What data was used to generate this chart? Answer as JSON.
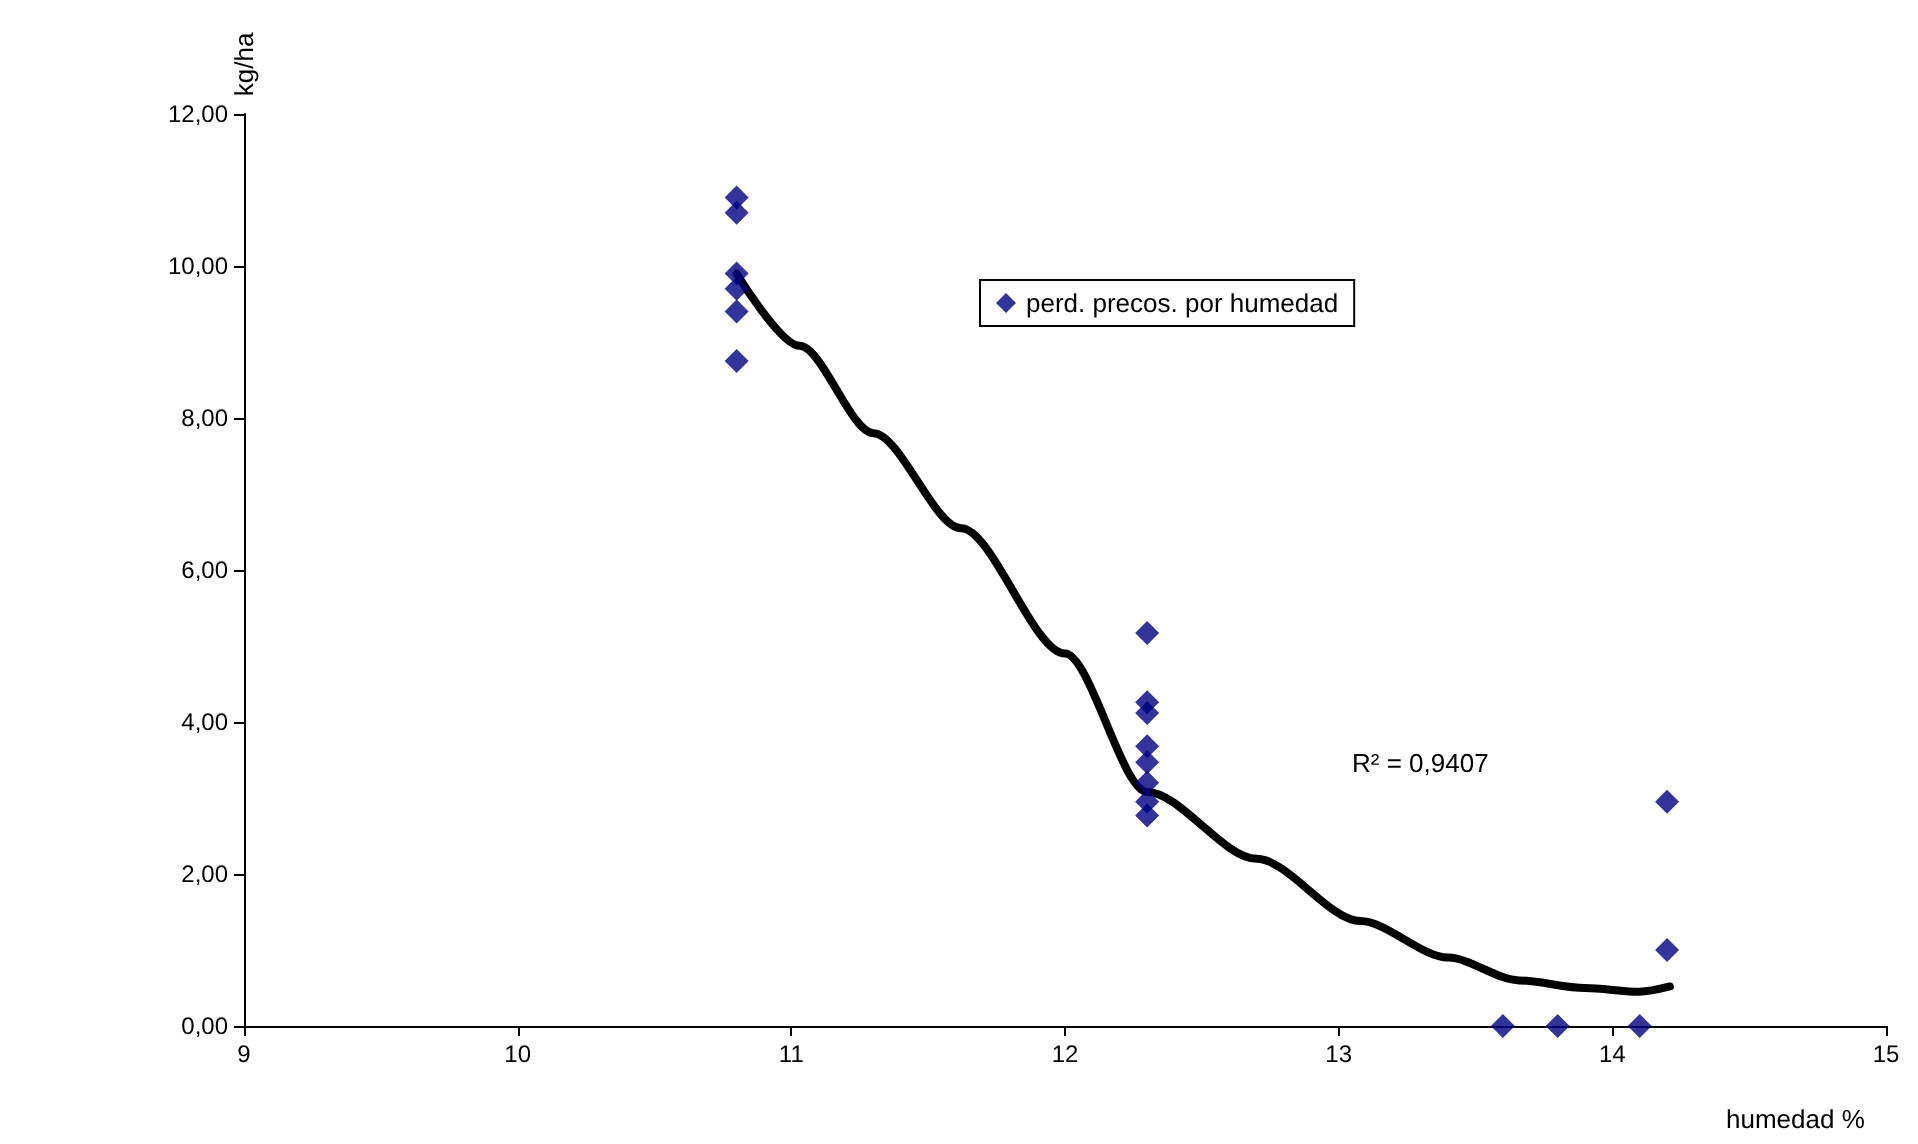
{
  "chart_data": {
    "type": "scatter",
    "xlabel": "humedad %",
    "ylabel": "kg/ha",
    "xlim": [
      9,
      15
    ],
    "xticks": [
      9,
      10,
      11,
      12,
      13,
      14,
      15
    ],
    "ylim": [
      0,
      12
    ],
    "yticks": [
      {
        "value": 0,
        "label": "0,00"
      },
      {
        "value": 2,
        "label": "2,00"
      },
      {
        "value": 4,
        "label": "4,00"
      },
      {
        "value": 6,
        "label": "6,00"
      },
      {
        "value": 8,
        "label": "8,00"
      },
      {
        "value": 10,
        "label": "10,00"
      },
      {
        "value": 12,
        "label": "12,00"
      }
    ],
    "grid": false,
    "legend": "top",
    "marker": "diamond",
    "annotations": [
      "R² = 0,9407"
    ],
    "series": [
      {
        "name": "perd. precos. por humedad",
        "color": "#000080",
        "x": [
          10.8,
          10.8,
          10.8,
          10.8,
          10.8,
          10.8,
          12.3,
          12.3,
          12.3,
          12.3,
          12.3,
          12.3,
          12.3,
          12.3,
          13.6,
          13.8,
          14.1,
          14.2,
          14.2
        ],
        "values": [
          10.9,
          10.7,
          9.9,
          9.7,
          9.4,
          8.75,
          5.17,
          4.26,
          4.12,
          3.68,
          3.47,
          3.2,
          2.95,
          2.77,
          0,
          0,
          0,
          2.95,
          1.0
        ]
      },
      {
        "type": "line",
        "color": "#000000",
        "marker": "none",
        "x": [
          10.8,
          11.03,
          11.3,
          11.62,
          12.0,
          12.3,
          12.7,
          13.08,
          13.4,
          13.66,
          13.9,
          14.1,
          14.21
        ],
        "values": [
          9.9,
          8.95,
          7.8,
          6.55,
          4.9,
          3.08,
          2.2,
          1.38,
          0.9,
          0.6,
          0.5,
          0.45,
          0.52
        ]
      }
    ]
  }
}
